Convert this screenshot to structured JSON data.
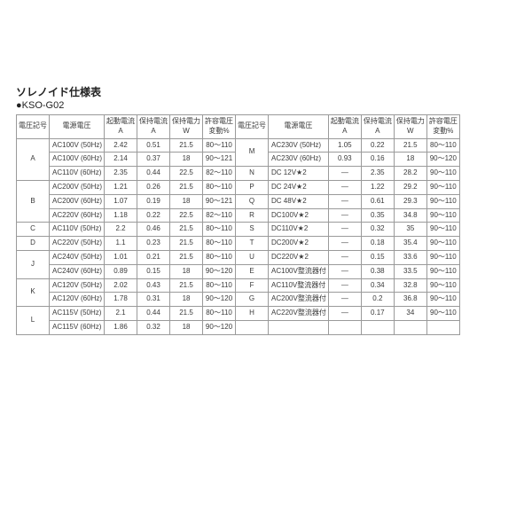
{
  "title": "ソレノイド仕様表",
  "subtitle": "●KSO-G02",
  "headers": {
    "code": "電圧記号",
    "ps": "電源電圧",
    "start": [
      "起動電流",
      "A"
    ],
    "hold": [
      "保持電流",
      "A"
    ],
    "pw": [
      "保持電力",
      "W"
    ],
    "tol": [
      "許容電圧",
      "変動%"
    ]
  },
  "left": [
    {
      "code": "A",
      "span": 3,
      "rows": [
        [
          "AC100V (50Hz)",
          "2.42",
          "0.51",
          "21.5",
          "80～110"
        ],
        [
          "AC100V (60Hz)",
          "2.14",
          "0.37",
          "18",
          "90～121"
        ],
        [
          "AC110V (60Hz)",
          "2.35",
          "0.44",
          "22.5",
          "82～110"
        ]
      ]
    },
    {
      "code": "B",
      "span": 3,
      "rows": [
        [
          "AC200V (50Hz)",
          "1.21",
          "0.26",
          "21.5",
          "80～110"
        ],
        [
          "AC200V (60Hz)",
          "1.07",
          "0.19",
          "18",
          "90～121"
        ],
        [
          "AC220V (60Hz)",
          "1.18",
          "0.22",
          "22.5",
          "82～110"
        ]
      ]
    },
    {
      "code": "C",
      "span": 1,
      "rows": [
        [
          "AC110V (50Hz)",
          "2.2",
          "0.46",
          "21.5",
          "80～110"
        ]
      ]
    },
    {
      "code": "D",
      "span": 1,
      "rows": [
        [
          "AC220V (50Hz)",
          "1.1",
          "0.23",
          "21.5",
          "80～110"
        ]
      ]
    },
    {
      "code": "J",
      "span": 2,
      "rows": [
        [
          "AC240V (50Hz)",
          "1.01",
          "0.21",
          "21.5",
          "80～110"
        ],
        [
          "AC240V (60Hz)",
          "0.89",
          "0.15",
          "18",
          "90～120"
        ]
      ]
    },
    {
      "code": "K",
      "span": 2,
      "rows": [
        [
          "AC120V (50Hz)",
          "2.02",
          "0.43",
          "21.5",
          "80～110"
        ],
        [
          "AC120V (60Hz)",
          "1.78",
          "0.31",
          "18",
          "90～120"
        ]
      ]
    },
    {
      "code": "L",
      "span": 2,
      "rows": [
        [
          "AC115V (50Hz)",
          "2.1",
          "0.44",
          "21.5",
          "80～110"
        ],
        [
          "AC115V (60Hz)",
          "1.86",
          "0.32",
          "18",
          "90～120"
        ]
      ]
    }
  ],
  "right": [
    {
      "code": "M",
      "span": 2,
      "rows": [
        [
          "AC230V (50Hz)",
          "1.05",
          "0.22",
          "21.5",
          "80～110"
        ],
        [
          "AC230V (60Hz)",
          "0.93",
          "0.16",
          "18",
          "90～120"
        ]
      ]
    },
    {
      "code": "N",
      "span": 1,
      "rows": [
        [
          "DC 12V★2",
          "—",
          "2.35",
          "28.2",
          "90～110"
        ]
      ]
    },
    {
      "code": "P",
      "span": 1,
      "rows": [
        [
          "DC 24V★2",
          "—",
          "1.22",
          "29.2",
          "90～110"
        ]
      ]
    },
    {
      "code": "Q",
      "span": 1,
      "rows": [
        [
          "DC 48V★2",
          "—",
          "0.61",
          "29.3",
          "90～110"
        ]
      ]
    },
    {
      "code": "R",
      "span": 1,
      "rows": [
        [
          "DC100V★2",
          "—",
          "0.35",
          "34.8",
          "90～110"
        ]
      ]
    },
    {
      "code": "S",
      "span": 1,
      "rows": [
        [
          "DC110V★2",
          "—",
          "0.32",
          "35",
          "90～110"
        ]
      ]
    },
    {
      "code": "T",
      "span": 1,
      "rows": [
        [
          "DC200V★2",
          "—",
          "0.18",
          "35.4",
          "90～110"
        ]
      ]
    },
    {
      "code": "U",
      "span": 1,
      "rows": [
        [
          "DC220V★2",
          "—",
          "0.15",
          "33.6",
          "90～110"
        ]
      ]
    },
    {
      "code": "E",
      "span": 1,
      "rows": [
        [
          "AC100V整流器付",
          "—",
          "0.38",
          "33.5",
          "90～110"
        ]
      ]
    },
    {
      "code": "F",
      "span": 1,
      "rows": [
        [
          "AC110V整流器付",
          "—",
          "0.34",
          "32.8",
          "90～110"
        ]
      ]
    },
    {
      "code": "G",
      "span": 1,
      "rows": [
        [
          "AC200V整流器付",
          "—",
          "0.2",
          "36.8",
          "90～110"
        ]
      ]
    },
    {
      "code": "H",
      "span": 1,
      "rows": [
        [
          "AC220V整流器付",
          "—",
          "0.17",
          "34",
          "90～110"
        ]
      ]
    }
  ]
}
